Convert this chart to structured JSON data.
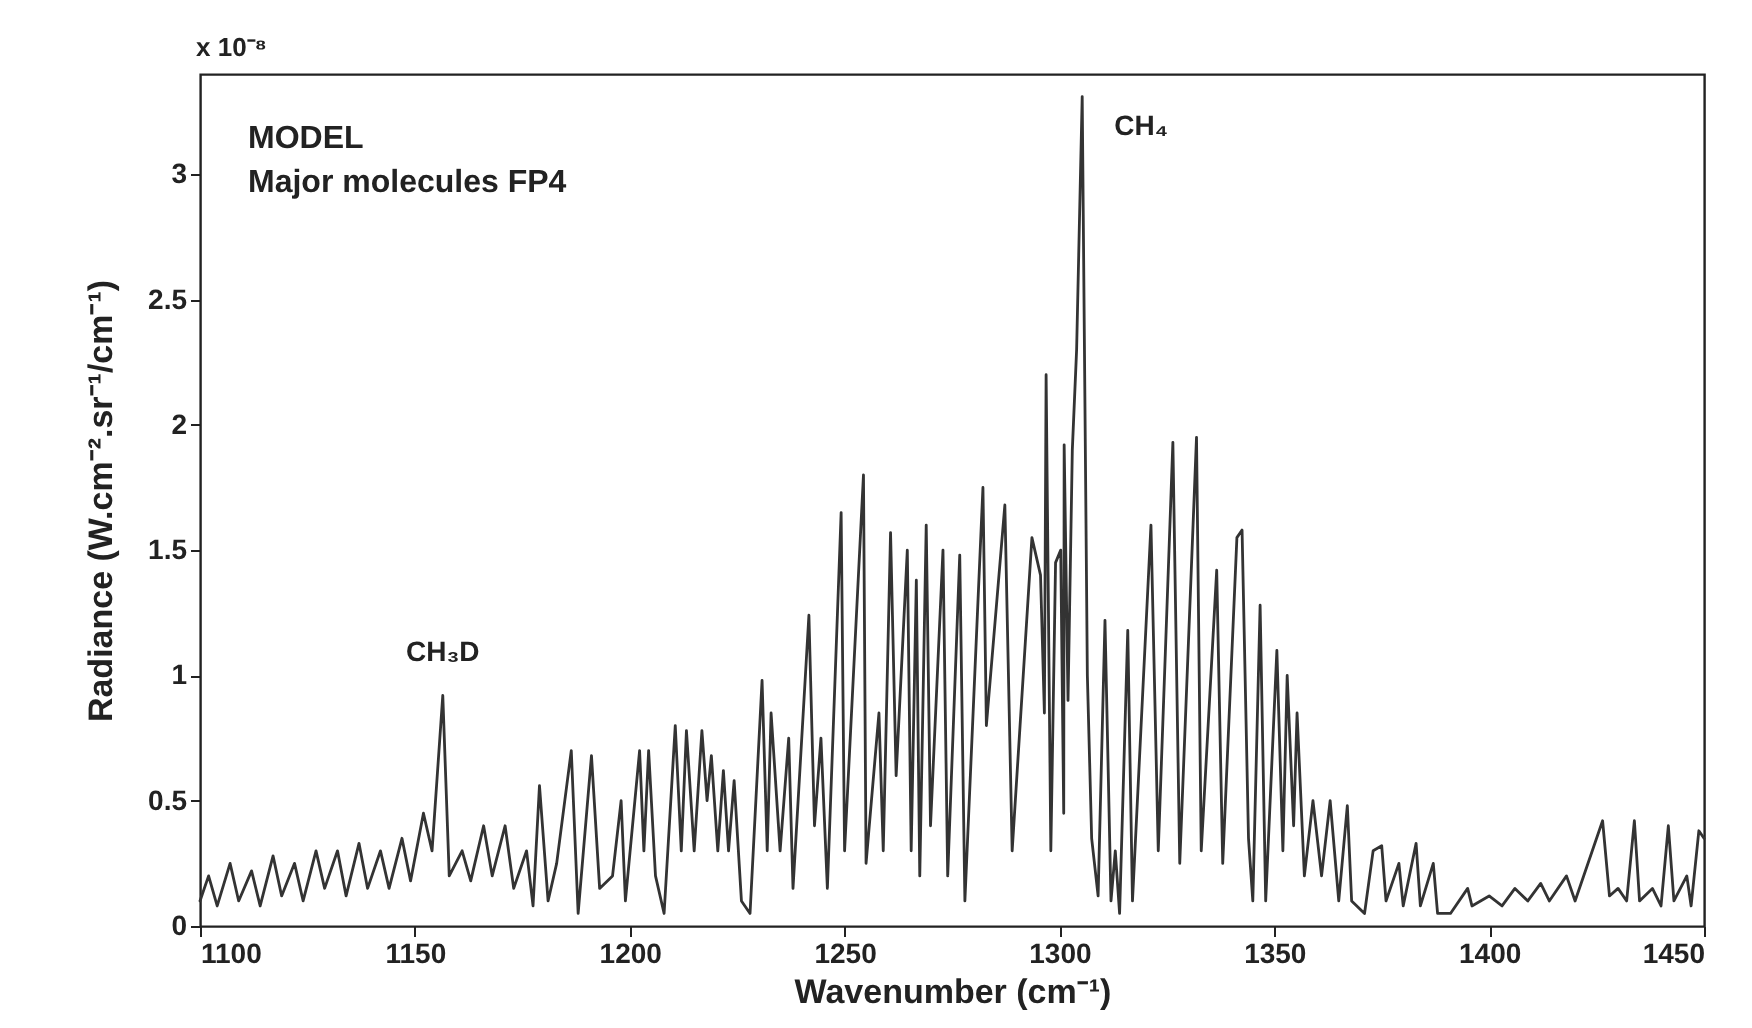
{
  "chart_data": {
    "type": "line",
    "xlabel": "Wavenumber (cm⁻¹)",
    "ylabel": "Radiance (W.cm⁻².sr⁻¹/cm⁻¹)",
    "annotations": [
      "x 10⁻⁸",
      "MODEL",
      "Major molecules FP4",
      {
        "text": "CH₃D",
        "x": 1156.5,
        "y": 0.92
      },
      {
        "text": "CH₄",
        "x": 1305.3,
        "y": 3.31
      }
    ],
    "xlim": [
      1100,
      1450
    ],
    "xticks": [
      1100,
      1150,
      1200,
      1250,
      1300,
      1350,
      1400,
      1450
    ],
    "ylim": [
      0,
      3.4
    ],
    "yticks": [
      0,
      0.5,
      1,
      1.5,
      2,
      2.5,
      3
    ],
    "grid": false,
    "marker": "none",
    "line_style": "solid",
    "series": [
      {
        "color": "#333333",
        "x": [
          1100,
          1102,
          1104,
          1107,
          1109,
          1112,
          1114,
          1117,
          1119,
          1122,
          1124,
          1127,
          1129,
          1132,
          1134,
          1137,
          1139,
          1142,
          1144,
          1147,
          1149,
          1152,
          1154,
          1156.5,
          1158,
          1161,
          1163,
          1166,
          1168,
          1171,
          1173,
          1176,
          1177.5,
          1179,
          1181,
          1183,
          1186.4,
          1188,
          1191.1,
          1193,
          1196,
          1198,
          1199,
          1202.3,
          1203.3,
          1204.4,
          1206,
          1208,
          1210.6,
          1212,
          1213.2,
          1215,
          1216.8,
          1218,
          1219,
          1220.5,
          1221.8,
          1223,
          1224.3,
          1226,
          1228,
          1230.8,
          1232,
          1232.9,
          1235,
          1237,
          1238,
          1241.7,
          1243,
          1244.5,
          1246,
          1249.2,
          1250,
          1254.4,
          1255,
          1258,
          1259,
          1260.7,
          1262,
          1264.6,
          1265.5,
          1266.7,
          1267.5,
          1269,
          1270,
          1272.9,
          1274,
          1276.8,
          1278,
          1282.2,
          1283,
          1287.3,
          1289,
          1293.6,
          1295.6,
          1296.5,
          1296.9,
          1298,
          1299.1,
          1300.3,
          1301,
          1301.1,
          1302,
          1303,
          1304,
          1305.3,
          1306.5,
          1307.5,
          1309,
          1310.6,
          1312,
          1313,
          1314,
          1315.9,
          1317,
          1321.3,
          1323,
          1326.4,
          1328,
          1331.9,
          1333,
          1336.6,
          1338,
          1341.3,
          1342.5,
          1344,
          1345,
          1346.7,
          1348,
          1350.6,
          1352,
          1353,
          1354.5,
          1355.3,
          1357,
          1359,
          1361,
          1363,
          1365,
          1367,
          1368,
          1371,
          1373,
          1375,
          1376,
          1379,
          1380,
          1383,
          1384,
          1387,
          1388,
          1391,
          1395,
          1396,
          1400,
          1403,
          1406,
          1409,
          1412,
          1414,
          1418,
          1420,
          1426.4,
          1428,
          1430,
          1432,
          1433.8,
          1435,
          1438,
          1440,
          1441.7,
          1443,
          1446,
          1447,
          1448.8,
          1450
        ],
        "values": [
          0.1,
          0.2,
          0.08,
          0.25,
          0.1,
          0.22,
          0.08,
          0.28,
          0.12,
          0.25,
          0.1,
          0.3,
          0.15,
          0.3,
          0.12,
          0.33,
          0.15,
          0.3,
          0.15,
          0.35,
          0.18,
          0.45,
          0.3,
          0.92,
          0.2,
          0.3,
          0.18,
          0.4,
          0.2,
          0.4,
          0.15,
          0.3,
          0.08,
          0.56,
          0.1,
          0.25,
          0.7,
          0.05,
          0.68,
          0.15,
          0.2,
          0.5,
          0.1,
          0.7,
          0.3,
          0.7,
          0.2,
          0.05,
          0.8,
          0.3,
          0.78,
          0.3,
          0.78,
          0.5,
          0.68,
          0.3,
          0.62,
          0.3,
          0.58,
          0.1,
          0.05,
          0.98,
          0.3,
          0.85,
          0.3,
          0.75,
          0.15,
          1.24,
          0.4,
          0.75,
          0.15,
          1.65,
          0.3,
          1.8,
          0.25,
          0.85,
          0.3,
          1.57,
          0.6,
          1.5,
          0.3,
          1.38,
          0.2,
          1.6,
          0.4,
          1.5,
          0.2,
          1.48,
          0.1,
          1.75,
          0.8,
          1.68,
          0.3,
          1.55,
          1.4,
          0.85,
          2.2,
          0.3,
          1.45,
          1.5,
          0.45,
          1.92,
          0.9,
          1.9,
          2.3,
          3.31,
          1.0,
          0.35,
          0.12,
          1.22,
          0.1,
          0.3,
          0.05,
          1.18,
          0.1,
          1.6,
          0.3,
          1.93,
          0.25,
          1.95,
          0.3,
          1.42,
          0.25,
          1.55,
          1.58,
          0.35,
          0.1,
          1.28,
          0.1,
          1.1,
          0.3,
          1.0,
          0.4,
          0.85,
          0.2,
          0.5,
          0.2,
          0.5,
          0.1,
          0.48,
          0.1,
          0.05,
          0.3,
          0.32,
          0.1,
          0.25,
          0.08,
          0.33,
          0.08,
          0.25,
          0.05,
          0.05,
          0.15,
          0.08,
          0.12,
          0.08,
          0.15,
          0.1,
          0.17,
          0.1,
          0.2,
          0.1,
          0.42,
          0.12,
          0.15,
          0.1,
          0.42,
          0.1,
          0.15,
          0.08,
          0.4,
          0.1,
          0.2,
          0.08,
          0.38,
          0.35
        ]
      }
    ]
  }
}
